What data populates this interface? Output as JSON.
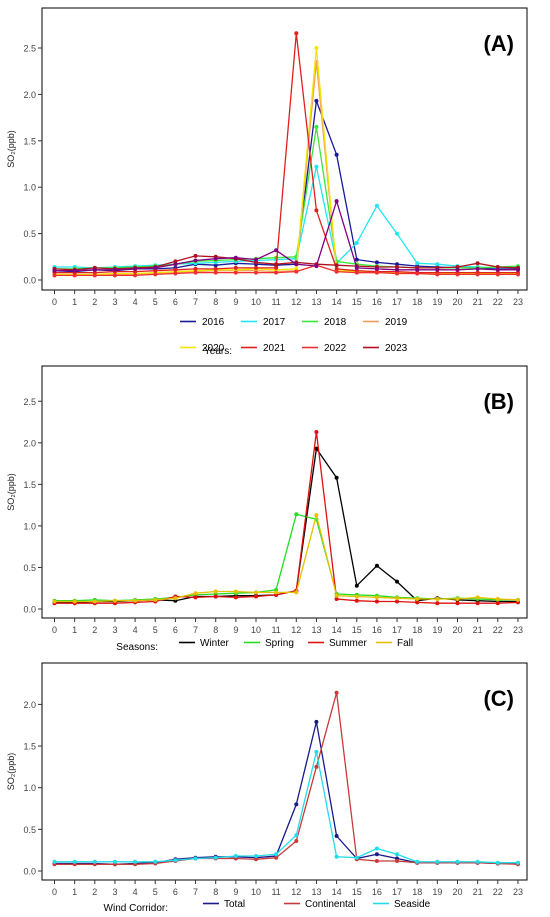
{
  "chart_data": [
    {
      "type": "line",
      "panel_label": "(A)",
      "ylabel": "SO₂(ppb)",
      "xlabel": "",
      "x": [
        0,
        1,
        2,
        3,
        4,
        5,
        6,
        7,
        8,
        9,
        10,
        11,
        12,
        13,
        14,
        15,
        16,
        17,
        18,
        19,
        20,
        21,
        22,
        23
      ],
      "ylim": [
        -0.1,
        2.8
      ],
      "yticks": [
        "0.0",
        "0.5",
        "1.0",
        "1.5",
        "2.0",
        "2.5"
      ],
      "grid": false,
      "legend_placement": "bottom",
      "legend_title": "Years:",
      "series": [
        {
          "name": "2016",
          "color": "#1a1a9a",
          "values": [
            0.1,
            0.09,
            0.11,
            0.1,
            0.12,
            0.12,
            0.13,
            0.17,
            0.16,
            0.18,
            0.17,
            0.16,
            0.17,
            1.93,
            1.35,
            0.22,
            0.19,
            0.17,
            0.15,
            0.14,
            0.13,
            0.13,
            0.12,
            0.12
          ]
        },
        {
          "name": "2017",
          "color": "#22e6f0",
          "values": [
            0.14,
            0.14,
            0.13,
            0.14,
            0.15,
            0.16,
            0.17,
            0.18,
            0.19,
            0.2,
            0.21,
            0.22,
            0.23,
            1.22,
            0.18,
            0.4,
            0.8,
            0.5,
            0.18,
            0.17,
            0.15,
            0.14,
            0.13,
            0.14
          ]
        },
        {
          "name": "2018",
          "color": "#3ae63a",
          "values": [
            0.12,
            0.12,
            0.13,
            0.13,
            0.14,
            0.15,
            0.17,
            0.2,
            0.21,
            0.22,
            0.23,
            0.24,
            0.25,
            1.65,
            0.2,
            0.17,
            0.15,
            0.14,
            0.13,
            0.13,
            0.13,
            0.13,
            0.14,
            0.15
          ]
        },
        {
          "name": "2019",
          "color": "#f5a05a",
          "values": [
            0.05,
            0.05,
            0.05,
            0.06,
            0.06,
            0.07,
            0.08,
            0.09,
            0.1,
            0.1,
            0.1,
            0.09,
            0.1,
            2.35,
            0.09,
            0.08,
            0.08,
            0.07,
            0.07,
            0.06,
            0.06,
            0.06,
            0.06,
            0.06
          ]
        },
        {
          "name": "2020",
          "color": "#f2e600",
          "values": [
            0.06,
            0.06,
            0.06,
            0.07,
            0.07,
            0.08,
            0.09,
            0.1,
            0.11,
            0.11,
            0.12,
            0.11,
            0.12,
            2.5,
            0.1,
            0.09,
            0.09,
            0.08,
            0.08,
            0.07,
            0.07,
            0.07,
            0.07,
            0.07
          ]
        },
        {
          "name": "2021",
          "color": "#e02020",
          "values": [
            0.08,
            0.08,
            0.08,
            0.09,
            0.09,
            0.1,
            0.11,
            0.12,
            0.12,
            0.13,
            0.13,
            0.13,
            2.66,
            0.75,
            0.12,
            0.1,
            0.09,
            0.09,
            0.08,
            0.08,
            0.08,
            0.08,
            0.08,
            0.08
          ]
        },
        {
          "name": "2022",
          "color": "#f03030",
          "values": [
            0.05,
            0.05,
            0.05,
            0.05,
            0.05,
            0.06,
            0.07,
            0.08,
            0.08,
            0.08,
            0.08,
            0.08,
            0.09,
            0.16,
            0.09,
            0.08,
            0.08,
            0.07,
            0.07,
            0.06,
            0.06,
            0.06,
            0.06,
            0.06
          ]
        },
        {
          "name": "2023",
          "color": "#b01020",
          "values": [
            0.12,
            0.11,
            0.13,
            0.12,
            0.13,
            0.14,
            0.2,
            0.26,
            0.25,
            0.23,
            0.19,
            0.17,
            0.19,
            0.17,
            0.16,
            0.15,
            0.14,
            0.14,
            0.13,
            0.13,
            0.14,
            0.18,
            0.14,
            0.13
          ]
        },
        {
          "name": "",
          "color": "#800080",
          "values": [
            0.1,
            0.1,
            0.11,
            0.11,
            0.12,
            0.13,
            0.17,
            0.21,
            0.23,
            0.24,
            0.22,
            0.32,
            0.17,
            0.15,
            0.85,
            0.13,
            0.12,
            0.11,
            0.11,
            0.11,
            0.11,
            0.12,
            0.11,
            0.11
          ]
        }
      ]
    },
    {
      "type": "line",
      "panel_label": "(B)",
      "ylabel": "SO₂(ppb)",
      "xlabel": "",
      "x": [
        0,
        1,
        2,
        3,
        4,
        5,
        6,
        7,
        8,
        9,
        10,
        11,
        12,
        13,
        14,
        15,
        16,
        17,
        18,
        19,
        20,
        21,
        22,
        23
      ],
      "ylim": [
        -0.1,
        2.8
      ],
      "yticks": [
        "0.0",
        "0.5",
        "1.0",
        "1.5",
        "2.0",
        "2.5"
      ],
      "grid": false,
      "legend_placement": "bottom",
      "legend_title": "Seasons:",
      "series": [
        {
          "name": "Winter",
          "color": "#000000",
          "values": [
            0.08,
            0.08,
            0.09,
            0.09,
            0.1,
            0.11,
            0.1,
            0.15,
            0.15,
            0.16,
            0.16,
            0.17,
            0.22,
            1.93,
            1.58,
            0.28,
            0.52,
            0.33,
            0.1,
            0.13,
            0.11,
            0.1,
            0.09,
            0.09
          ]
        },
        {
          "name": "Spring",
          "color": "#22dd22",
          "values": [
            0.1,
            0.1,
            0.11,
            0.1,
            0.11,
            0.12,
            0.14,
            0.17,
            0.18,
            0.19,
            0.2,
            0.23,
            1.14,
            1.08,
            0.18,
            0.17,
            0.16,
            0.14,
            0.13,
            0.12,
            0.13,
            0.12,
            0.11,
            0.11
          ]
        },
        {
          "name": "Summer",
          "color": "#e01010",
          "values": [
            0.07,
            0.07,
            0.07,
            0.07,
            0.08,
            0.09,
            0.15,
            0.14,
            0.15,
            0.14,
            0.15,
            0.17,
            0.22,
            2.13,
            0.12,
            0.1,
            0.09,
            0.09,
            0.08,
            0.07,
            0.07,
            0.07,
            0.07,
            0.08
          ]
        },
        {
          "name": "Fall",
          "color": "#e6c000",
          "values": [
            0.09,
            0.09,
            0.09,
            0.1,
            0.1,
            0.11,
            0.13,
            0.19,
            0.21,
            0.21,
            0.2,
            0.2,
            0.2,
            1.13,
            0.16,
            0.15,
            0.14,
            0.13,
            0.12,
            0.12,
            0.12,
            0.14,
            0.12,
            0.11
          ]
        }
      ]
    },
    {
      "type": "line",
      "panel_label": "(C)",
      "ylabel": "SO₂(ppb)",
      "xlabel": "",
      "x": [
        0,
        1,
        2,
        3,
        4,
        5,
        6,
        7,
        8,
        9,
        10,
        11,
        12,
        13,
        14,
        15,
        16,
        17,
        18,
        19,
        20,
        21,
        22,
        23
      ],
      "ylim": [
        -0.1,
        2.4
      ],
      "yticks": [
        "0.0",
        "0.5",
        "1.0",
        "1.5",
        "2.0"
      ],
      "grid": false,
      "legend_placement": "bottom",
      "legend_title": "Wind Corridor:",
      "series": [
        {
          "name": "Total",
          "color": "#1a1a8a",
          "values": [
            0.09,
            0.09,
            0.09,
            0.08,
            0.09,
            0.1,
            0.14,
            0.16,
            0.17,
            0.17,
            0.16,
            0.18,
            0.8,
            1.79,
            0.42,
            0.15,
            0.2,
            0.15,
            0.1,
            0.1,
            0.1,
            0.1,
            0.09,
            0.09
          ]
        },
        {
          "name": "Continental",
          "color": "#c83a3a",
          "values": [
            0.08,
            0.08,
            0.08,
            0.08,
            0.08,
            0.09,
            0.12,
            0.15,
            0.15,
            0.15,
            0.14,
            0.16,
            0.36,
            1.25,
            2.14,
            0.14,
            0.12,
            0.12,
            0.1,
            0.1,
            0.1,
            0.1,
            0.09,
            0.08
          ]
        },
        {
          "name": "Seaside",
          "color": "#22dde8",
          "values": [
            0.11,
            0.11,
            0.11,
            0.11,
            0.11,
            0.11,
            0.13,
            0.15,
            0.16,
            0.18,
            0.18,
            0.2,
            0.43,
            1.43,
            0.17,
            0.16,
            0.27,
            0.2,
            0.11,
            0.11,
            0.11,
            0.11,
            0.1,
            0.1
          ]
        }
      ]
    }
  ]
}
